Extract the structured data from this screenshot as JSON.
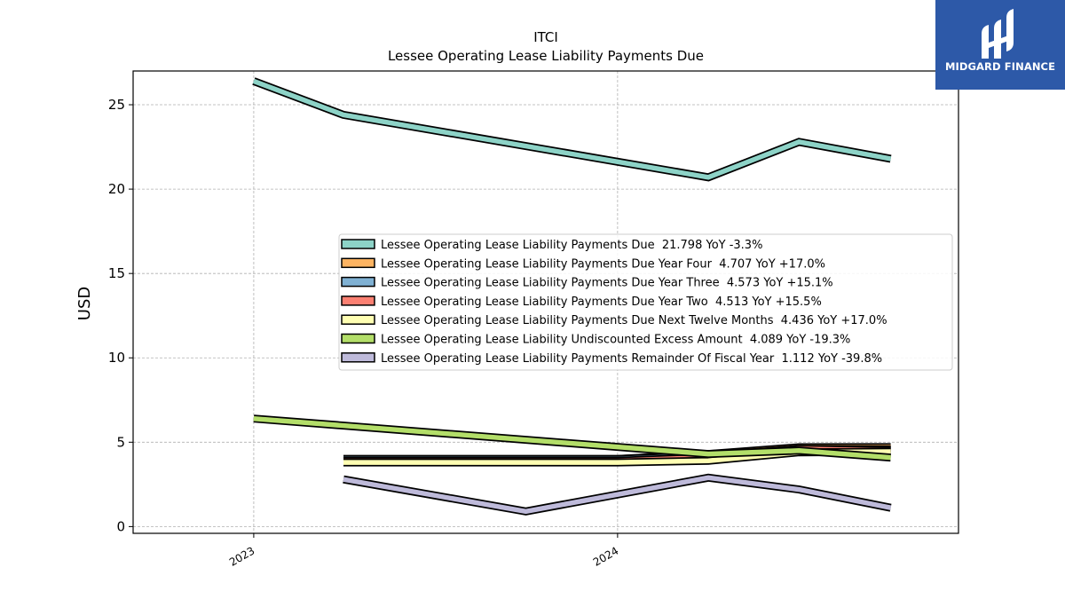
{
  "chart_data": {
    "type": "line",
    "title": "ITCI",
    "subtitle": "Lessee Operating Lease Liability Payments Due",
    "ylabel": "USD",
    "xlabel": "",
    "ylim": [
      -0.4,
      27.0
    ],
    "xlim": [
      "2022-09-02",
      "2024-12-08"
    ],
    "yticks": [
      0,
      5,
      10,
      15,
      20,
      25
    ],
    "xticks": [
      {
        "date": "2023-01-01",
        "label": "2023"
      },
      {
        "date": "2024-01-01",
        "label": "2024"
      }
    ],
    "grid": true,
    "legend_position": "center-right",
    "series": [
      {
        "name": "Lessee Operating Lease Liability Payments Due",
        "legend": "Lessee Operating Lease Liability Payments Due  21.798 YoY -3.3%",
        "color": "#8dd3c7",
        "points": [
          [
            "2023-01-01",
            26.4
          ],
          [
            "2023-04-01",
            24.4
          ],
          [
            "2024-04-01",
            20.7
          ],
          [
            "2024-07-01",
            22.8
          ],
          [
            "2024-10-01",
            21.8
          ]
        ]
      },
      {
        "name": "Lessee Operating Lease Liability Payments Due Year Four",
        "legend": "Lessee Operating Lease Liability Payments Due Year Four  4.707 YoY +17.0%",
        "color": "#fdb462",
        "points": [
          [
            "2023-04-01",
            4.0
          ],
          [
            "2024-01-01",
            4.0
          ],
          [
            "2024-04-01",
            4.3
          ],
          [
            "2024-07-01",
            4.7
          ],
          [
            "2024-10-01",
            4.707
          ]
        ]
      },
      {
        "name": "Lessee Operating Lease Liability Payments Due Year Three",
        "legend": "Lessee Operating Lease Liability Payments Due Year Three  4.573 YoY +15.1%",
        "color": "#80b1d3",
        "points": [
          [
            "2023-04-01",
            4.0
          ],
          [
            "2024-01-01",
            4.0
          ],
          [
            "2024-04-01",
            4.2
          ],
          [
            "2024-07-01",
            4.6
          ],
          [
            "2024-10-01",
            4.573
          ]
        ]
      },
      {
        "name": "Lessee Operating Lease Liability Payments Due Year Two",
        "legend": "Lessee Operating Lease Liability Payments Due Year Two  4.513 YoY +15.5%",
        "color": "#fb8072",
        "points": [
          [
            "2023-04-01",
            3.9
          ],
          [
            "2024-01-01",
            3.9
          ],
          [
            "2024-04-01",
            4.1
          ],
          [
            "2024-07-01",
            4.6
          ],
          [
            "2024-10-01",
            4.513
          ]
        ]
      },
      {
        "name": "Lessee Operating Lease Liability Payments Due Next Twelve Months",
        "legend": "Lessee Operating Lease Liability Payments Due Next Twelve Months  4.436 YoY +17.0%",
        "color": "#ffffb3",
        "points": [
          [
            "2023-04-01",
            3.8
          ],
          [
            "2024-01-01",
            3.8
          ],
          [
            "2024-04-01",
            3.9
          ],
          [
            "2024-07-01",
            4.4
          ],
          [
            "2024-10-01",
            4.436
          ]
        ]
      },
      {
        "name": "Lessee Operating Lease Liability Undiscounted Excess Amount",
        "legend": "Lessee Operating Lease Liability Undiscounted Excess Amount  4.089 YoY -19.3%",
        "color": "#b3de69",
        "points": [
          [
            "2023-01-01",
            6.4
          ],
          [
            "2024-04-01",
            4.3
          ],
          [
            "2024-07-01",
            4.5
          ],
          [
            "2024-10-01",
            4.089
          ]
        ]
      },
      {
        "name": "Lessee Operating Lease Liability Payments Remainder Of Fiscal Year",
        "legend": "Lessee Operating Lease Liability Payments Remainder Of Fiscal Year  1.112 YoY -39.8%",
        "color": "#bebada",
        "points": [
          [
            "2023-04-01",
            2.8
          ],
          [
            "2023-10-01",
            0.9
          ],
          [
            "2024-04-01",
            2.9
          ],
          [
            "2024-07-01",
            2.2
          ],
          [
            "2024-10-01",
            1.112
          ]
        ]
      }
    ]
  },
  "logo": {
    "text": "MIDGARD FINANCE",
    "color": "#2d59a8"
  }
}
